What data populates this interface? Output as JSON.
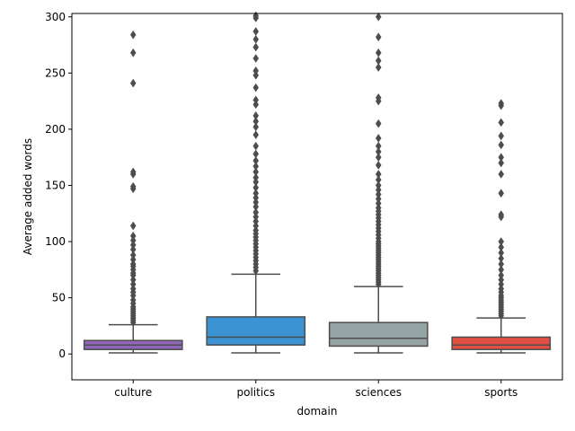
{
  "chart_data": {
    "type": "box",
    "xlabel": "domain",
    "ylabel": "Average added words",
    "ylim": [
      -23,
      303
    ],
    "yticks": [
      0,
      50,
      100,
      150,
      200,
      250,
      300
    ],
    "categories": [
      "culture",
      "politics",
      "sciences",
      "sports"
    ],
    "colors": {
      "line": "#4d4d4d",
      "culture": "#9166b8",
      "politics": "#3b93d3",
      "sciences": "#95a5a6",
      "sports": "#e24e42"
    },
    "boxes": [
      {
        "name": "culture",
        "whisker_low": 1,
        "q1": 4,
        "median": 8,
        "q3": 12,
        "whisker_high": 26,
        "outliers": [
          28,
          30,
          32,
          34,
          36,
          38,
          40,
          42,
          45,
          48,
          52,
          55,
          58,
          62,
          66,
          70,
          72,
          75,
          78,
          80,
          84,
          88,
          93,
          97,
          101,
          105,
          114,
          147,
          149,
          160,
          162,
          241,
          268,
          284
        ]
      },
      {
        "name": "politics",
        "whisker_low": 1,
        "q1": 8,
        "median": 15,
        "q3": 33,
        "whisker_high": 71,
        "outliers": [
          74,
          77,
          80,
          83,
          86,
          89,
          92,
          95,
          98,
          101,
          104,
          107,
          110,
          114,
          118,
          122,
          126,
          131,
          135,
          139,
          143,
          148,
          153,
          157,
          162,
          167,
          172,
          178,
          185,
          195,
          202,
          207,
          212,
          222,
          226,
          237,
          248,
          252,
          263,
          273,
          280,
          287,
          299,
          301
        ]
      },
      {
        "name": "sciences",
        "whisker_low": 1,
        "q1": 7,
        "median": 14,
        "q3": 28,
        "whisker_high": 60,
        "outliers": [
          62,
          64,
          66,
          68,
          70,
          72,
          74,
          76,
          78,
          80,
          82,
          84,
          86,
          88,
          90,
          92,
          94,
          96,
          98,
          100,
          103,
          106,
          109,
          112,
          115,
          118,
          121,
          124,
          127,
          130,
          134,
          138,
          142,
          146,
          150,
          155,
          160,
          168,
          175,
          180,
          185,
          192,
          205,
          225,
          228,
          255,
          261,
          268,
          282,
          300
        ]
      },
      {
        "name": "sports",
        "whisker_low": 1,
        "q1": 4,
        "median": 8,
        "q3": 15,
        "whisker_high": 32,
        "outliers": [
          34,
          36,
          38,
          40,
          42,
          44,
          46,
          48,
          50,
          52,
          55,
          58,
          62,
          66,
          70,
          75,
          80,
          85,
          90,
          95,
          100,
          122,
          124,
          143,
          160,
          170,
          175,
          186,
          194,
          206,
          221,
          223
        ]
      }
    ]
  }
}
